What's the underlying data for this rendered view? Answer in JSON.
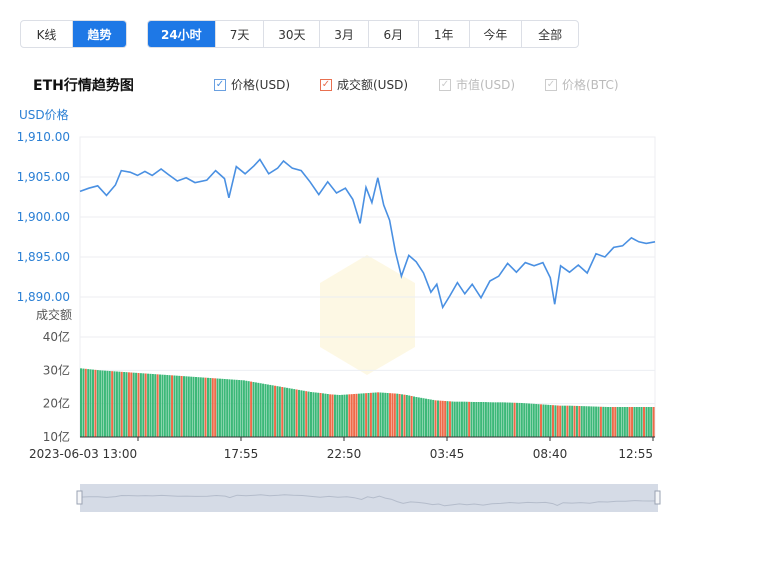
{
  "timeframe_tabs": [
    {
      "label": "K线",
      "active": false
    },
    {
      "label": "趋势",
      "active": true
    }
  ],
  "range_tabs": [
    {
      "label": "24小时",
      "active": true
    },
    {
      "label": "7天",
      "active": false
    },
    {
      "label": "30天",
      "active": false
    },
    {
      "label": "3月",
      "active": false
    },
    {
      "label": "6月",
      "active": false
    },
    {
      "label": "1年",
      "active": false
    },
    {
      "label": "今年",
      "active": false
    },
    {
      "label": "全部",
      "active": false
    }
  ],
  "title": "ETH行情趋势图",
  "legend": [
    {
      "label": "价格(USD)",
      "checked": true,
      "enabled": true,
      "color": "#4a90e2"
    },
    {
      "label": "成交额(USD)",
      "checked": true,
      "enabled": true,
      "color": "#e87050"
    },
    {
      "label": "市值(USD)",
      "checked": true,
      "enabled": false,
      "color": "#cccccc"
    },
    {
      "label": "价格(BTC)",
      "checked": true,
      "enabled": false,
      "color": "#cccccc"
    }
  ],
  "colors": {
    "price_line": "#4a90e2",
    "volume_up": "#3cb878",
    "volume_down": "#ee6a48",
    "axis_label": "#2a7fd4",
    "navigator": "#d5dbe6"
  },
  "chart_data": {
    "type": "line",
    "price_axis_label": "USD价格",
    "volume_axis_label": "成交额",
    "price_ticks": [
      "1,910.00",
      "1,905.00",
      "1,900.00",
      "1,895.00",
      "1,890.00"
    ],
    "price_ylim": [
      1890,
      1910
    ],
    "volume_ticks": [
      "40亿",
      "30亿",
      "20亿",
      "10亿"
    ],
    "volume_ylim": [
      10,
      40
    ],
    "x_ticks": [
      "2023-06-03 13:00",
      "17:55",
      "22:50",
      "03:45",
      "08:40",
      "12:55"
    ],
    "price_series": [
      {
        "t": 0,
        "v": 1903.2
      },
      {
        "t": 0.3,
        "v": 1903.6
      },
      {
        "t": 0.6,
        "v": 1903.9
      },
      {
        "t": 0.9,
        "v": 1902.7
      },
      {
        "t": 1.2,
        "v": 1904.0
      },
      {
        "t": 1.4,
        "v": 1905.8
      },
      {
        "t": 1.7,
        "v": 1905.6
      },
      {
        "t": 1.95,
        "v": 1905.2
      },
      {
        "t": 2.2,
        "v": 1905.7
      },
      {
        "t": 2.45,
        "v": 1905.2
      },
      {
        "t": 2.75,
        "v": 1906.0
      },
      {
        "t": 3.0,
        "v": 1905.3
      },
      {
        "t": 3.3,
        "v": 1904.5
      },
      {
        "t": 3.6,
        "v": 1904.9
      },
      {
        "t": 3.9,
        "v": 1904.3
      },
      {
        "t": 4.3,
        "v": 1904.6
      },
      {
        "t": 4.6,
        "v": 1905.8
      },
      {
        "t": 4.9,
        "v": 1904.8
      },
      {
        "t": 5.05,
        "v": 1902.4
      },
      {
        "t": 5.3,
        "v": 1906.3
      },
      {
        "t": 5.6,
        "v": 1905.4
      },
      {
        "t": 5.9,
        "v": 1906.4
      },
      {
        "t": 6.1,
        "v": 1907.2
      },
      {
        "t": 6.4,
        "v": 1905.4
      },
      {
        "t": 6.7,
        "v": 1906.1
      },
      {
        "t": 6.9,
        "v": 1907.0
      },
      {
        "t": 7.2,
        "v": 1906.1
      },
      {
        "t": 7.5,
        "v": 1905.8
      },
      {
        "t": 7.8,
        "v": 1904.4
      },
      {
        "t": 8.1,
        "v": 1902.8
      },
      {
        "t": 8.4,
        "v": 1904.4
      },
      {
        "t": 8.7,
        "v": 1903.0
      },
      {
        "t": 9.0,
        "v": 1903.6
      },
      {
        "t": 9.25,
        "v": 1902.2
      },
      {
        "t": 9.5,
        "v": 1899.2
      },
      {
        "t": 9.7,
        "v": 1903.7
      },
      {
        "t": 9.9,
        "v": 1901.8
      },
      {
        "t": 10.1,
        "v": 1904.9
      },
      {
        "t": 10.3,
        "v": 1901.5
      },
      {
        "t": 10.5,
        "v": 1899.6
      },
      {
        "t": 10.7,
        "v": 1895.6
      },
      {
        "t": 10.9,
        "v": 1892.6
      },
      {
        "t": 11.15,
        "v": 1895.2
      },
      {
        "t": 11.4,
        "v": 1894.4
      },
      {
        "t": 11.65,
        "v": 1893.0
      },
      {
        "t": 11.9,
        "v": 1890.6
      },
      {
        "t": 12.1,
        "v": 1891.6
      },
      {
        "t": 12.3,
        "v": 1888.7
      },
      {
        "t": 12.55,
        "v": 1890.2
      },
      {
        "t": 12.8,
        "v": 1891.8
      },
      {
        "t": 13.05,
        "v": 1890.4
      },
      {
        "t": 13.3,
        "v": 1891.6
      },
      {
        "t": 13.6,
        "v": 1889.9
      },
      {
        "t": 13.9,
        "v": 1892.0
      },
      {
        "t": 14.2,
        "v": 1892.6
      },
      {
        "t": 14.5,
        "v": 1894.2
      },
      {
        "t": 14.8,
        "v": 1893.1
      },
      {
        "t": 15.1,
        "v": 1894.3
      },
      {
        "t": 15.4,
        "v": 1893.9
      },
      {
        "t": 15.7,
        "v": 1894.3
      },
      {
        "t": 15.95,
        "v": 1892.4
      },
      {
        "t": 16.1,
        "v": 1889.1
      },
      {
        "t": 16.3,
        "v": 1893.9
      },
      {
        "t": 16.6,
        "v": 1893.1
      },
      {
        "t": 16.9,
        "v": 1894.0
      },
      {
        "t": 17.2,
        "v": 1893.0
      },
      {
        "t": 17.5,
        "v": 1895.4
      },
      {
        "t": 17.8,
        "v": 1895.0
      },
      {
        "t": 18.1,
        "v": 1896.2
      },
      {
        "t": 18.4,
        "v": 1896.4
      },
      {
        "t": 18.7,
        "v": 1897.4
      },
      {
        "t": 18.95,
        "v": 1896.9
      },
      {
        "t": 19.2,
        "v": 1896.7
      },
      {
        "t": 19.5,
        "v": 1896.9
      }
    ],
    "volume_series": [
      30.6,
      30.3,
      30.0,
      29.8,
      29.6,
      29.4,
      29.2,
      29.0,
      28.8,
      28.6,
      28.4,
      28.2,
      28.0,
      27.8,
      27.6,
      27.4,
      27.2,
      27.0,
      26.5,
      26.0,
      25.5,
      25.0,
      24.5,
      24.0,
      23.5,
      23.2,
      22.8,
      22.6,
      22.8,
      23.0,
      23.2,
      23.4,
      23.2,
      23.0,
      22.6,
      22.0,
      21.5,
      21.0,
      20.8,
      20.6,
      20.6,
      20.5,
      20.5,
      20.4,
      20.4,
      20.3,
      20.2,
      20.0,
      19.8,
      19.6,
      19.4,
      19.4,
      19.3,
      19.2,
      19.1,
      19.0,
      19.0,
      19.0,
      19.0,
      19.0
    ]
  }
}
